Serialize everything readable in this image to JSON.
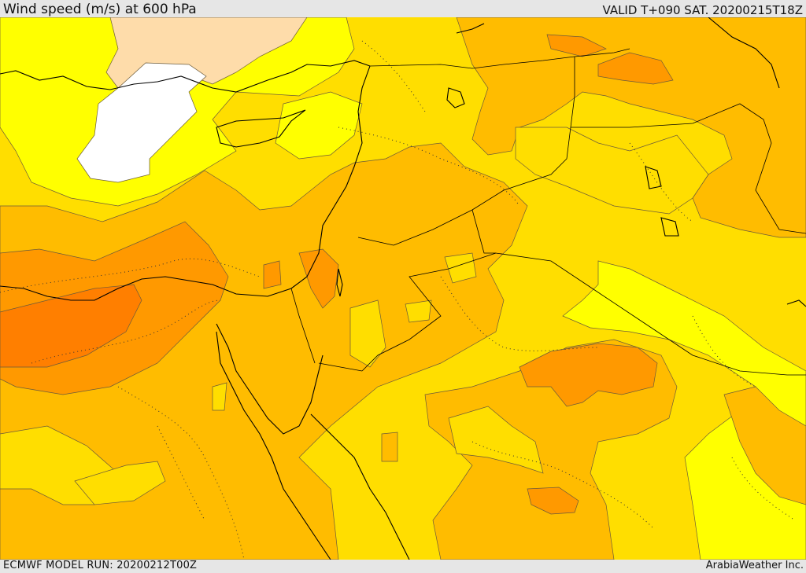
{
  "header": {
    "title": "Wind speed (m/s) at 600 hPa",
    "valid_time": "VALID T+090 SAT. 20200215T18Z"
  },
  "footer": {
    "model_run": "ECMWF MODEL RUN: 20200212T00Z",
    "credit": "ArabiaWeather Inc."
  },
  "map": {
    "field": "wind speed",
    "colors": {
      "white": "#ffffff",
      "peach": "#fedcaa",
      "bright_yellow": "#ffff00",
      "yellow": "#ffde00",
      "light_orange": "#ffbc00",
      "orange": "#ff9900",
      "dark_orange": "#ff7f00",
      "contour": "#6b5a3a",
      "coast": "#000000"
    }
  }
}
